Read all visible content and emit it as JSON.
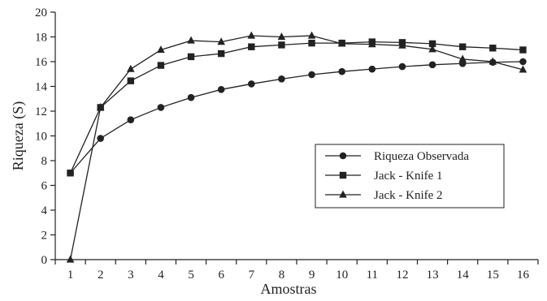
{
  "chart_data": {
    "type": "line",
    "title": "",
    "xlabel": "Amostras",
    "ylabel": "Riqueza  (S)",
    "x": [
      1,
      2,
      3,
      4,
      5,
      6,
      7,
      8,
      9,
      10,
      11,
      12,
      13,
      14,
      15,
      16
    ],
    "xlim": [
      0.5,
      16.5
    ],
    "ylim": [
      0,
      20
    ],
    "yticks": [
      0,
      2,
      4,
      6,
      8,
      10,
      12,
      14,
      16,
      18,
      20
    ],
    "grid": false,
    "legend_position": "right",
    "series": [
      {
        "name": "Riqueza Observada",
        "marker": "circle",
        "color": "#222222",
        "values": [
          7.0,
          9.8,
          11.3,
          12.3,
          13.1,
          13.75,
          14.2,
          14.6,
          14.95,
          15.2,
          15.4,
          15.6,
          15.75,
          15.85,
          15.95,
          16.0
        ]
      },
      {
        "name": "Jack - Knife 1",
        "marker": "square",
        "color": "#222222",
        "values": [
          7.0,
          12.3,
          14.45,
          15.7,
          16.4,
          16.65,
          17.2,
          17.35,
          17.5,
          17.5,
          17.6,
          17.55,
          17.45,
          17.2,
          17.1,
          16.95
        ]
      },
      {
        "name": "Jack - Knife  2",
        "marker": "triangle",
        "color": "#222222",
        "values": [
          0.0,
          12.3,
          15.4,
          16.95,
          17.7,
          17.6,
          18.1,
          18.0,
          18.1,
          17.45,
          17.4,
          17.3,
          17.0,
          16.2,
          16.0,
          15.35
        ]
      }
    ]
  }
}
